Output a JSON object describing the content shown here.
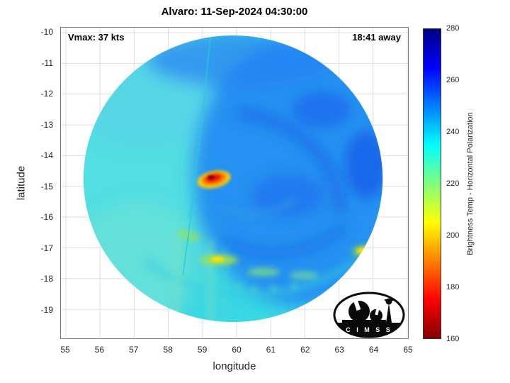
{
  "title": "Alvaro: 11-Sep-2024 04:30:00",
  "annotations": {
    "vmax": "Vmax: 37 kts",
    "time_to_next": "18:41 away"
  },
  "axes": {
    "xlabel": "longitude",
    "ylabel": "latitude",
    "xticks": [
      "55",
      "56",
      "57",
      "58",
      "59",
      "60",
      "61",
      "62",
      "63",
      "64",
      "65"
    ],
    "yticks": [
      "-10",
      "-11",
      "-12",
      "-13",
      "-14",
      "-15",
      "-16",
      "-17",
      "-18",
      "-19"
    ]
  },
  "colorbar": {
    "label": "Brightness Temp - Horizontal Polarization",
    "ticks": [
      "280",
      "260",
      "240",
      "220",
      "200",
      "180",
      "160"
    ],
    "min": 160,
    "max": 280,
    "gradient_stops": [
      {
        "value": 280,
        "color": "#000080"
      },
      {
        "value": 265,
        "color": "#0000ff"
      },
      {
        "value": 235,
        "color": "#00ffff"
      },
      {
        "value": 205,
        "color": "#ffff00"
      },
      {
        "value": 175,
        "color": "#ff0000"
      },
      {
        "value": 160,
        "color": "#800000"
      }
    ]
  },
  "logo": {
    "name": "CIMSS",
    "text": "C I M S S"
  },
  "chart_data": {
    "type": "heatmap",
    "title": "Alvaro: 11-Sep-2024 04:30:00",
    "xlabel": "longitude",
    "ylabel": "latitude",
    "xlim": [
      55,
      65
    ],
    "ylim": [
      -20,
      -10
    ],
    "value_label": "Brightness Temp - Horizontal Polarization (K)",
    "value_range": [
      160,
      280
    ],
    "colormap": "jet reversed (280 K dark blue at top of bar, 160 K dark red at bottom)",
    "swath": {
      "shape": "circular",
      "center": {
        "lon": 59.9,
        "lat": -14.75
      },
      "radius_deg": 4.7
    },
    "grid": {
      "lon": [
        55.5,
        56.5,
        57.5,
        58.5,
        59.5,
        60.5,
        61.5,
        62.5,
        63.5,
        64.5
      ],
      "lat": [
        -10.5,
        -11.5,
        -12.5,
        -13.5,
        -14.5,
        -15.5,
        -16.5,
        -17.5,
        -18.5,
        -19.5
      ],
      "values_K": [
        [
          null,
          null,
          null,
          246,
          250,
          252,
          251,
          null,
          null,
          null
        ],
        [
          null,
          238,
          241,
          244,
          248,
          252,
          253,
          250,
          246,
          null
        ],
        [
          null,
          236,
          238,
          241,
          246,
          250,
          252,
          250,
          246,
          null
        ],
        [
          234,
          236,
          238,
          240,
          244,
          250,
          252,
          250,
          247,
          244
        ],
        [
          233,
          236,
          238,
          236,
          200,
          246,
          250,
          250,
          248,
          245
        ],
        [
          234,
          237,
          239,
          238,
          240,
          244,
          248,
          248,
          246,
          244
        ],
        [
          null,
          238,
          228,
          232,
          218,
          232,
          240,
          242,
          234,
          null
        ],
        [
          null,
          null,
          228,
          220,
          205,
          232,
          238,
          230,
          212,
          null
        ],
        [
          null,
          null,
          232,
          228,
          230,
          235,
          238,
          236,
          null,
          null
        ],
        [
          null,
          null,
          null,
          null,
          242,
          242,
          null,
          null,
          null,
          null
        ]
      ]
    },
    "features": [
      {
        "name": "deep-convection-core",
        "lon": 59.35,
        "lat": -14.8,
        "approx_value_K": 165,
        "color": "red with orange-yellow fringe"
      },
      {
        "name": "convective-band-spot",
        "lon": 59.5,
        "lat": -17.4,
        "approx_value_K": 205,
        "color": "yellow"
      },
      {
        "name": "convective-spot-east",
        "lon": 63.8,
        "lat": -17.1,
        "approx_value_K": 208,
        "color": "yellow-green"
      },
      {
        "name": "warm-brightness-region-east",
        "approx_value_K": 252,
        "color": "blue"
      },
      {
        "name": "cool-cyan-region-west",
        "approx_value_K": 237,
        "color": "light cyan"
      },
      {
        "name": "swath-seam",
        "from": {
          "lon": 59.3,
          "lat": -10.2
        },
        "to": {
          "lon": 58.4,
          "lat": -17.0
        }
      }
    ]
  }
}
